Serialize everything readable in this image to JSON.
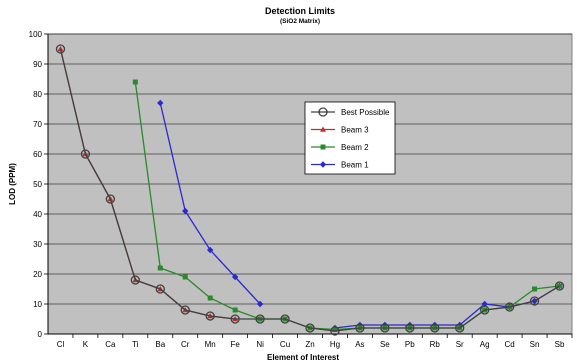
{
  "chart_data": {
    "type": "line",
    "title": "Detection Limits",
    "subtitle": "(SiO2 Matrix)",
    "xlabel": "Element of Interest",
    "ylabel": "LOD (PPM)",
    "ylim": [
      0,
      100
    ],
    "yticks": [
      0,
      10,
      20,
      30,
      40,
      50,
      60,
      70,
      80,
      90,
      100
    ],
    "grid": true,
    "legend_position": "center-right",
    "background_color": "#c0c0c0",
    "categories": [
      "Cl",
      "K",
      "Ca",
      "Ti",
      "Ba",
      "Cr",
      "Mn",
      "Fe",
      "Ni",
      "Cu",
      "Zn",
      "Hg",
      "As",
      "Se",
      "Pb",
      "Rb",
      "Sr",
      "Ag",
      "Cd",
      "Sn",
      "Sb"
    ],
    "series": [
      {
        "name": "Best Possible",
        "color": "#404040",
        "marker": "open-circle",
        "values": [
          95,
          60,
          45,
          18,
          15,
          8,
          6,
          5,
          5,
          5,
          2,
          1,
          2,
          2,
          2,
          2,
          2,
          8,
          9,
          11,
          16
        ]
      },
      {
        "name": "Beam 3",
        "color": "#c0302a",
        "marker": "triangle",
        "values": [
          95,
          60,
          45,
          18,
          15,
          8,
          6,
          5,
          null,
          null,
          null,
          null,
          null,
          null,
          null,
          null,
          null,
          null,
          null,
          null,
          null
        ]
      },
      {
        "name": "Beam 2",
        "color": "#2a8a2a",
        "marker": "square",
        "values": [
          null,
          null,
          null,
          84,
          22,
          19,
          12,
          8,
          5,
          5,
          2,
          1.5,
          2,
          2,
          2,
          2,
          2,
          8,
          9,
          15,
          16
        ]
      },
      {
        "name": "Beam 1",
        "color": "#2a2ad0",
        "marker": "diamond",
        "values": [
          null,
          null,
          null,
          null,
          77,
          41,
          28,
          19,
          10,
          null,
          null,
          2,
          3,
          3,
          3,
          3,
          3,
          10,
          9,
          11,
          16
        ]
      }
    ]
  }
}
